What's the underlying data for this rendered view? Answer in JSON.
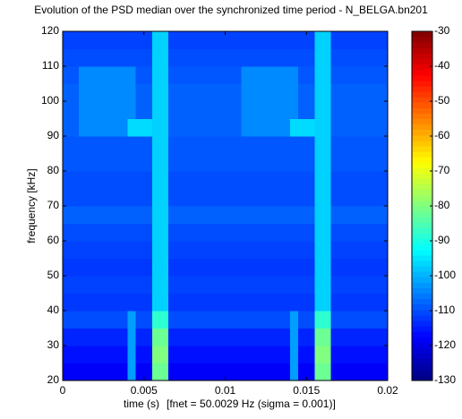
{
  "chart_data": {
    "type": "heatmap",
    "title": "Evolution of the PSD median over the synchronized time period - N_BELGA.bn201",
    "xlabel": "time (s)",
    "annotation": "[fnet = 50.0029 Hz (sigma = 0.001)]",
    "ylabel": "frequency [kHz]",
    "xlim": [
      0,
      0.02
    ],
    "xticks": [
      0,
      0.005,
      0.01,
      0.015,
      0.02
    ],
    "ylim": [
      20,
      120
    ],
    "yticks": [
      20,
      30,
      40,
      50,
      60,
      70,
      80,
      90,
      100,
      110,
      120
    ],
    "zlim": [
      -130,
      -30
    ],
    "zticks": [
      -30,
      -40,
      -50,
      -60,
      -70,
      -80,
      -90,
      -100,
      -110,
      -120,
      -130
    ],
    "colormap": "jet",
    "x": [
      0.00025,
      0.00075,
      0.00125,
      0.00175,
      0.00225,
      0.00275,
      0.00325,
      0.00375,
      0.00425,
      0.00475,
      0.00525,
      0.00575,
      0.00625,
      0.00675,
      0.00725,
      0.00775,
      0.00825,
      0.00875,
      0.00925,
      0.00975,
      0.01025,
      0.01075,
      0.01125,
      0.01175,
      0.01225,
      0.01275,
      0.01325,
      0.01375,
      0.01425,
      0.01475,
      0.01525,
      0.01575,
      0.01625,
      0.01675,
      0.01725,
      0.01775,
      0.01825,
      0.01875,
      0.01925,
      0.01975
    ],
    "y": [
      22.5,
      27.5,
      32.5,
      37.5,
      42.5,
      47.5,
      52.5,
      57.5,
      62.5,
      67.5,
      72.5,
      77.5,
      82.5,
      87.5,
      92.5,
      97.5,
      102.5,
      107.5,
      112.5,
      117.5
    ],
    "z": [
      [
        -118,
        -118,
        -118,
        -118,
        -118,
        -118,
        -118,
        -118,
        -102,
        -118,
        -118,
        -82,
        -82,
        -118,
        -118,
        -118,
        -118,
        -118,
        -118,
        -118,
        -118,
        -118,
        -118,
        -118,
        -118,
        -118,
        -118,
        -118,
        -102,
        -118,
        -118,
        -82,
        -82,
        -118,
        -118,
        -118,
        -118,
        -118,
        -118,
        -118
      ],
      [
        -116,
        -116,
        -116,
        -116,
        -116,
        -116,
        -116,
        -116,
        -102,
        -116,
        -116,
        -80,
        -80,
        -116,
        -116,
        -116,
        -116,
        -116,
        -116,
        -116,
        -116,
        -116,
        -116,
        -116,
        -116,
        -116,
        -116,
        -116,
        -102,
        -116,
        -116,
        -80,
        -80,
        -116,
        -116,
        -116,
        -116,
        -116,
        -116,
        -116
      ],
      [
        -114,
        -114,
        -114,
        -114,
        -114,
        -114,
        -114,
        -114,
        -102,
        -114,
        -114,
        -82,
        -82,
        -114,
        -114,
        -114,
        -114,
        -114,
        -114,
        -114,
        -114,
        -114,
        -114,
        -114,
        -114,
        -114,
        -114,
        -114,
        -102,
        -114,
        -114,
        -82,
        -82,
        -114,
        -114,
        -114,
        -114,
        -114,
        -114,
        -114
      ],
      [
        -110,
        -110,
        -110,
        -110,
        -110,
        -110,
        -110,
        -110,
        -102,
        -110,
        -110,
        -88,
        -88,
        -110,
        -110,
        -110,
        -110,
        -110,
        -110,
        -110,
        -110,
        -110,
        -110,
        -110,
        -110,
        -110,
        -110,
        -110,
        -102,
        -110,
        -110,
        -88,
        -88,
        -110,
        -110,
        -110,
        -110,
        -110,
        -110,
        -110
      ],
      [
        -112,
        -112,
        -112,
        -112,
        -112,
        -112,
        -112,
        -112,
        -112,
        -112,
        -112,
        -97,
        -97,
        -112,
        -112,
        -112,
        -112,
        -112,
        -112,
        -112,
        -112,
        -112,
        -112,
        -112,
        -112,
        -112,
        -112,
        -112,
        -112,
        -112,
        -112,
        -97,
        -97,
        -112,
        -112,
        -112,
        -112,
        -112,
        -112,
        -112
      ],
      [
        -111,
        -111,
        -111,
        -111,
        -111,
        -111,
        -111,
        -111,
        -111,
        -111,
        -111,
        -97,
        -97,
        -111,
        -111,
        -111,
        -111,
        -111,
        -111,
        -111,
        -111,
        -111,
        -111,
        -111,
        -111,
        -111,
        -111,
        -111,
        -111,
        -111,
        -111,
        -97,
        -97,
        -111,
        -111,
        -111,
        -111,
        -111,
        -111,
        -111
      ],
      [
        -112,
        -112,
        -112,
        -112,
        -112,
        -112,
        -112,
        -112,
        -112,
        -112,
        -112,
        -97,
        -97,
        -112,
        -112,
        -112,
        -112,
        -112,
        -112,
        -112,
        -112,
        -112,
        -112,
        -112,
        -112,
        -112,
        -112,
        -112,
        -112,
        -112,
        -112,
        -97,
        -97,
        -112,
        -112,
        -112,
        -112,
        -112,
        -112,
        -112
      ],
      [
        -111,
        -111,
        -111,
        -111,
        -111,
        -111,
        -111,
        -111,
        -111,
        -111,
        -111,
        -97,
        -97,
        -111,
        -111,
        -111,
        -111,
        -111,
        -111,
        -111,
        -111,
        -111,
        -111,
        -111,
        -111,
        -111,
        -111,
        -111,
        -111,
        -111,
        -111,
        -97,
        -97,
        -111,
        -111,
        -111,
        -111,
        -111,
        -111,
        -111
      ],
      [
        -110,
        -110,
        -110,
        -110,
        -110,
        -110,
        -110,
        -110,
        -110,
        -110,
        -110,
        -97,
        -97,
        -110,
        -110,
        -110,
        -110,
        -110,
        -110,
        -110,
        -110,
        -110,
        -110,
        -110,
        -110,
        -110,
        -110,
        -110,
        -110,
        -110,
        -110,
        -97,
        -97,
        -110,
        -110,
        -110,
        -110,
        -110,
        -110,
        -110
      ],
      [
        -108,
        -108,
        -108,
        -108,
        -108,
        -108,
        -108,
        -108,
        -108,
        -108,
        -108,
        -97,
        -97,
        -108,
        -108,
        -108,
        -108,
        -108,
        -108,
        -108,
        -108,
        -108,
        -108,
        -108,
        -108,
        -108,
        -108,
        -108,
        -108,
        -108,
        -108,
        -97,
        -97,
        -108,
        -108,
        -108,
        -108,
        -108,
        -108,
        -108
      ],
      [
        -110,
        -110,
        -110,
        -110,
        -110,
        -110,
        -110,
        -110,
        -110,
        -110,
        -110,
        -97,
        -97,
        -110,
        -110,
        -110,
        -110,
        -110,
        -110,
        -110,
        -110,
        -110,
        -110,
        -110,
        -110,
        -110,
        -110,
        -110,
        -110,
        -110,
        -110,
        -97,
        -97,
        -110,
        -110,
        -110,
        -110,
        -110,
        -110,
        -110
      ],
      [
        -110,
        -110,
        -110,
        -110,
        -110,
        -110,
        -110,
        -110,
        -110,
        -110,
        -110,
        -97,
        -97,
        -110,
        -110,
        -110,
        -110,
        -110,
        -110,
        -110,
        -110,
        -110,
        -110,
        -110,
        -110,
        -110,
        -110,
        -110,
        -110,
        -110,
        -110,
        -97,
        -97,
        -110,
        -110,
        -110,
        -110,
        -110,
        -110,
        -110
      ],
      [
        -109,
        -109,
        -109,
        -109,
        -109,
        -109,
        -109,
        -109,
        -109,
        -109,
        -109,
        -97,
        -97,
        -109,
        -109,
        -109,
        -109,
        -109,
        -109,
        -109,
        -109,
        -109,
        -109,
        -109,
        -109,
        -109,
        -109,
        -109,
        -109,
        -109,
        -109,
        -97,
        -97,
        -109,
        -109,
        -109,
        -109,
        -109,
        -109,
        -109
      ],
      [
        -109,
        -109,
        -109,
        -109,
        -109,
        -109,
        -109,
        -109,
        -109,
        -109,
        -109,
        -97,
        -97,
        -109,
        -109,
        -109,
        -109,
        -109,
        -109,
        -109,
        -109,
        -109,
        -109,
        -109,
        -109,
        -109,
        -109,
        -109,
        -109,
        -109,
        -109,
        -97,
        -97,
        -109,
        -109,
        -109,
        -109,
        -109,
        -109,
        -109
      ],
      [
        -108,
        -108,
        -104,
        -104,
        -104,
        -104,
        -104,
        -104,
        -96,
        -96,
        -96,
        -97,
        -97,
        -108,
        -108,
        -108,
        -108,
        -108,
        -108,
        -108,
        -108,
        -108,
        -104,
        -104,
        -104,
        -104,
        -104,
        -104,
        -96,
        -96,
        -96,
        -97,
        -97,
        -108,
        -108,
        -108,
        -108,
        -108,
        -108,
        -108
      ],
      [
        -108,
        -108,
        -104,
        -104,
        -104,
        -104,
        -104,
        -104,
        -104,
        -108,
        -108,
        -97,
        -97,
        -108,
        -108,
        -108,
        -108,
        -108,
        -108,
        -108,
        -108,
        -108,
        -104,
        -104,
        -104,
        -104,
        -104,
        -104,
        -104,
        -108,
        -108,
        -97,
        -97,
        -108,
        -108,
        -108,
        -108,
        -108,
        -108,
        -108
      ],
      [
        -108,
        -108,
        -104,
        -104,
        -104,
        -104,
        -104,
        -104,
        -104,
        -108,
        -108,
        -97,
        -97,
        -108,
        -108,
        -108,
        -108,
        -108,
        -108,
        -108,
        -108,
        -108,
        -104,
        -104,
        -104,
        -104,
        -104,
        -104,
        -104,
        -108,
        -108,
        -97,
        -97,
        -108,
        -108,
        -108,
        -108,
        -108,
        -108,
        -108
      ],
      [
        -109,
        -109,
        -104,
        -104,
        -104,
        -104,
        -104,
        -104,
        -104,
        -109,
        -109,
        -97,
        -97,
        -109,
        -109,
        -109,
        -109,
        -109,
        -109,
        -109,
        -109,
        -109,
        -104,
        -104,
        -104,
        -104,
        -104,
        -104,
        -104,
        -109,
        -109,
        -97,
        -97,
        -109,
        -109,
        -109,
        -109,
        -109,
        -109,
        -109
      ],
      [
        -110,
        -110,
        -110,
        -110,
        -110,
        -110,
        -110,
        -110,
        -110,
        -110,
        -110,
        -97,
        -97,
        -110,
        -110,
        -110,
        -110,
        -110,
        -110,
        -110,
        -110,
        -110,
        -110,
        -110,
        -110,
        -110,
        -110,
        -110,
        -110,
        -110,
        -110,
        -97,
        -97,
        -110,
        -110,
        -110,
        -110,
        -110,
        -110,
        -110
      ],
      [
        -111,
        -111,
        -111,
        -111,
        -111,
        -111,
        -111,
        -111,
        -111,
        -111,
        -111,
        -97,
        -97,
        -111,
        -111,
        -111,
        -111,
        -111,
        -111,
        -111,
        -111,
        -111,
        -111,
        -111,
        -111,
        -111,
        -111,
        -111,
        -111,
        -111,
        -111,
        -97,
        -97,
        -111,
        -111,
        -111,
        -111,
        -111,
        -111,
        -111
      ]
    ]
  }
}
